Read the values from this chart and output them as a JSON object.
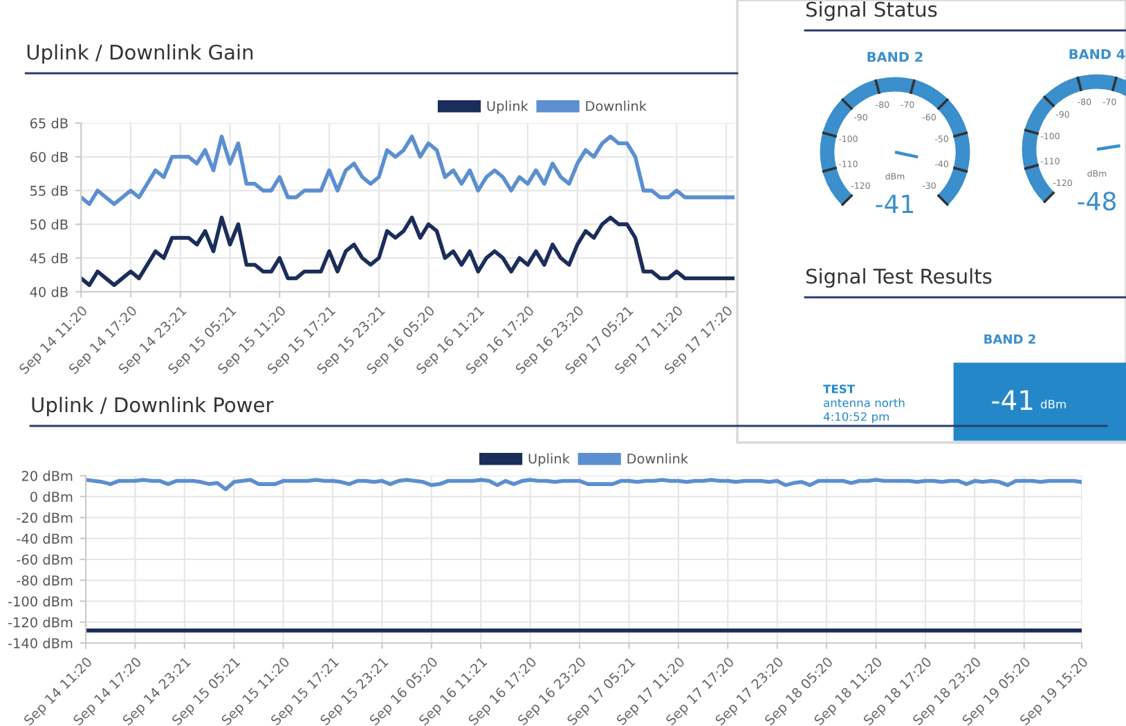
{
  "chart_data": [
    {
      "type": "line",
      "title": "Uplink / Downlink Gain",
      "categories": [
        "Sep 14 11:20",
        null,
        null,
        null,
        null,
        null,
        "Sep 14 17:20",
        null,
        null,
        null,
        null,
        null,
        "Sep 14 23:21",
        null,
        null,
        null,
        null,
        null,
        "Sep 15 05:21",
        null,
        null,
        null,
        null,
        null,
        "Sep 15 11:20",
        null,
        null,
        null,
        null,
        null,
        "Sep 15 17:21",
        null,
        null,
        null,
        null,
        null,
        "Sep 15 23:21",
        null,
        null,
        null,
        null,
        null,
        "Sep 16 05:20",
        null,
        null,
        null,
        null,
        null,
        "Sep 16 11:21",
        null,
        null,
        null,
        null,
        null,
        "Sep 16 17:20",
        null,
        null,
        null,
        null,
        null,
        "Sep 16 23:20",
        null,
        null,
        null,
        null,
        null,
        "Sep 17 05:21",
        null,
        null,
        null,
        null,
        null,
        "Sep 17 11:20",
        null,
        null,
        null,
        null,
        null,
        "Sep 17 17:20",
        null
      ],
      "series": [
        {
          "name": "Uplink",
          "color": "#1b2d5a",
          "values": [
            42,
            41,
            43,
            42,
            41,
            42,
            43,
            42,
            44,
            46,
            45,
            48,
            48,
            48,
            47,
            49,
            46,
            51,
            47,
            50,
            44,
            44,
            43,
            43,
            45,
            42,
            42,
            43,
            43,
            43,
            46,
            43,
            46,
            47,
            45,
            44,
            45,
            49,
            48,
            49,
            51,
            48,
            50,
            49,
            45,
            46,
            44,
            46,
            43,
            45,
            46,
            45,
            43,
            45,
            44,
            46,
            44,
            47,
            45,
            44,
            47,
            49,
            48,
            50,
            51,
            50,
            50,
            48,
            43,
            43,
            42,
            42,
            43,
            42,
            42,
            42,
            42,
            42,
            42,
            42
          ]
        },
        {
          "name": "Downlink",
          "color": "#5b8fd0",
          "values": [
            54,
            53,
            55,
            54,
            53,
            54,
            55,
            54,
            56,
            58,
            57,
            60,
            60,
            60,
            59,
            61,
            58,
            63,
            59,
            62,
            56,
            56,
            55,
            55,
            57,
            54,
            54,
            55,
            55,
            55,
            58,
            55,
            58,
            59,
            57,
            56,
            57,
            61,
            60,
            61,
            63,
            60,
            62,
            61,
            57,
            58,
            56,
            58,
            55,
            57,
            58,
            57,
            55,
            57,
            56,
            58,
            56,
            59,
            57,
            56,
            59,
            61,
            60,
            62,
            63,
            62,
            62,
            60,
            55,
            55,
            54,
            54,
            55,
            54,
            54,
            54,
            54,
            54,
            54,
            54
          ]
        }
      ],
      "ylim": [
        40,
        65
      ],
      "yticks": [
        {
          "value": 40,
          "label": "40 dB"
        },
        {
          "value": 45,
          "label": "45 dB"
        },
        {
          "value": 50,
          "label": "50 dB"
        },
        {
          "value": 55,
          "label": "55 dB"
        },
        {
          "value": 60,
          "label": "60 dB"
        },
        {
          "value": 65,
          "label": "65 dB"
        }
      ],
      "grid": true,
      "legend": "top right",
      "line_style": "solid"
    },
    {
      "type": "line",
      "title": "Uplink / Downlink Power",
      "categories": [
        "Sep 14 11:20",
        null,
        null,
        null,
        null,
        null,
        "Sep 14 17:20",
        null,
        null,
        null,
        null,
        null,
        "Sep 14 23:21",
        null,
        null,
        null,
        null,
        null,
        "Sep 15 05:21",
        null,
        null,
        null,
        null,
        null,
        "Sep 15 11:20",
        null,
        null,
        null,
        null,
        null,
        "Sep 15 17:21",
        null,
        null,
        null,
        null,
        null,
        "Sep 15 23:21",
        null,
        null,
        null,
        null,
        null,
        "Sep 16 05:20",
        null,
        null,
        null,
        null,
        null,
        "Sep 16 11:21",
        null,
        null,
        null,
        null,
        null,
        "Sep 16 17:20",
        null,
        null,
        null,
        null,
        null,
        "Sep 16 23:20",
        null,
        null,
        null,
        null,
        null,
        "Sep 17 05:21",
        null,
        null,
        null,
        null,
        null,
        "Sep 17 11:20",
        null,
        null,
        null,
        null,
        null,
        "Sep 17 17:20",
        null,
        null,
        null,
        null,
        null,
        "Sep 17 23:20",
        null,
        null,
        null,
        null,
        null,
        "Sep 18 05:20",
        null,
        null,
        null,
        null,
        null,
        "Sep 18 11:20",
        null,
        null,
        null,
        null,
        null,
        "Sep 18 17:20",
        null,
        null,
        null,
        null,
        null,
        "Sep 18 23:20",
        null,
        null,
        null,
        null,
        null,
        "Sep 19 05:20",
        null,
        null,
        null,
        null,
        null,
        null,
        "Sep 19 15:20"
      ],
      "series": [
        {
          "name": "Uplink",
          "color": "#1b2d5a",
          "values": [
            -128,
            -128,
            -128,
            -128,
            -128,
            -128,
            -128,
            -128,
            -128,
            -128,
            -128,
            -128,
            -128,
            -128,
            -128,
            -128,
            -128,
            -128,
            -128,
            -128,
            -128,
            -128,
            -128,
            -128,
            -128,
            -128,
            -128,
            -128,
            -128,
            -128,
            -128,
            -128,
            -128,
            -128,
            -128,
            -128,
            -128,
            -128,
            -128,
            -128,
            -128,
            -128,
            -128,
            -128,
            -128,
            -128,
            -128,
            -128,
            -128,
            -128,
            -128,
            -128,
            -128,
            -128,
            -128,
            -128,
            -128,
            -128,
            -128,
            -128,
            -128,
            -128,
            -128,
            -128,
            -128,
            -128,
            -128,
            -128,
            -128,
            -128,
            -128,
            -128,
            -128,
            -128,
            -128,
            -128,
            -128,
            -128,
            -128,
            -128,
            -128,
            -128,
            -128,
            -128,
            -128,
            -128,
            -128,
            -128,
            -128,
            -128,
            -128,
            -128,
            -128,
            -128,
            -128,
            -128,
            -128,
            -128,
            -128,
            -128,
            -128,
            -128,
            -128,
            -128,
            -128,
            -128,
            -128,
            -128,
            -128,
            -128,
            -128,
            -128,
            -128,
            -128,
            -128,
            -128,
            -128,
            -128,
            -128,
            -128,
            -128,
            -128
          ]
        },
        {
          "name": "Downlink",
          "color": "#5b8fd0",
          "values": [
            16,
            15,
            14,
            12,
            15,
            15,
            15,
            16,
            15,
            15,
            12,
            15,
            15,
            15,
            14,
            12,
            13,
            7,
            14,
            15,
            16,
            12,
            12,
            12,
            15,
            15,
            15,
            15,
            16,
            15,
            15,
            14,
            12,
            15,
            15,
            14,
            15,
            12,
            15,
            16,
            15,
            14,
            11,
            12,
            15,
            15,
            15,
            15,
            16,
            15,
            11,
            15,
            12,
            15,
            16,
            15,
            15,
            14,
            15,
            15,
            15,
            12,
            12,
            12,
            12,
            15,
            15,
            14,
            15,
            15,
            16,
            15,
            15,
            14,
            15,
            15,
            16,
            15,
            15,
            14,
            15,
            15,
            15,
            14,
            15,
            11,
            13,
            14,
            11,
            15,
            15,
            15,
            15,
            13,
            15,
            15,
            16,
            15,
            15,
            15,
            15,
            14,
            15,
            15,
            14,
            15,
            15,
            12,
            15,
            14,
            15,
            14,
            11,
            15,
            15,
            15,
            14,
            15,
            15,
            15,
            15,
            14
          ]
        }
      ],
      "ylim": [
        -140,
        20
      ],
      "yticks": [
        {
          "value": -140,
          "label": "-140 dBm"
        },
        {
          "value": -120,
          "label": "-120 dBm"
        },
        {
          "value": -100,
          "label": "-100 dBm"
        },
        {
          "value": -80,
          "label": "-80 dBm"
        },
        {
          "value": -60,
          "label": "-60 dBm"
        },
        {
          "value": -40,
          "label": "-40 dBm"
        },
        {
          "value": -20,
          "label": "-20 dBm"
        },
        {
          "value": 0,
          "label": "0 dBm"
        },
        {
          "value": 20,
          "label": "20 dBm"
        }
      ],
      "grid": true,
      "legend": "top",
      "line_style": "solid"
    },
    {
      "type": "other",
      "title": "Signal Status",
      "subtitle": "BAND 2",
      "values": [
        -41
      ],
      "data_labels": true,
      "color": "#3a8fcc",
      "annotations": [
        "dBm",
        "-120",
        "-110",
        "-100",
        "-90",
        "-80",
        "-70",
        "-60",
        "-50",
        "-40",
        "-30"
      ]
    },
    {
      "type": "other",
      "subtitle": "BAND 4",
      "values": [
        -48
      ],
      "data_labels": true,
      "color": "#3a8fcc",
      "annotations": [
        "dBm",
        "-120",
        "-110",
        "-100",
        "-90",
        "-80",
        "-70"
      ]
    },
    {
      "type": "other",
      "title": "Signal Test Results",
      "categories": [
        "BAND 2"
      ],
      "values": [
        -41
      ],
      "data_labels": true,
      "color": "#2488c8",
      "annotations": [
        "TEST",
        "antenna north",
        "4:10:52 pm",
        "dBm"
      ]
    }
  ]
}
